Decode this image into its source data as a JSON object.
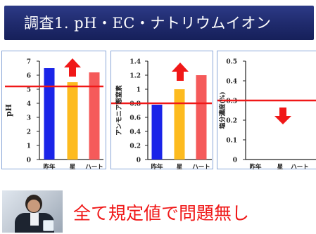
{
  "header": {
    "title": "調査1. pH・EC・ナトリウムイオン"
  },
  "conclusion": {
    "text": "全て規定値で問題無し"
  },
  "colors": {
    "blue": "#1a24e8",
    "yellow": "#fdbb1f",
    "red": "#f55a5a",
    "line": "#f01818",
    "title_bg": "#1f2a6c"
  },
  "icons": {
    "arrow": "red-arrow-icon",
    "photo": "researcher-photo"
  },
  "chart_data": [
    {
      "type": "bar",
      "categories": [
        "昨年",
        "星",
        "ハート"
      ],
      "values": [
        6.5,
        5.5,
        6.2
      ],
      "ylabel": "pH",
      "ylim": [
        0,
        7
      ],
      "yticks": [
        0,
        1,
        2,
        3,
        4,
        5,
        6,
        7
      ],
      "ytick_labels": [
        "0",
        "1",
        "2",
        "3",
        "4",
        "5",
        "6",
        "7"
      ],
      "reference_line": 5.2,
      "arrow": "up",
      "bar_colors": [
        "#1a24e8",
        "#fdbb1f",
        "#f55a5a"
      ]
    },
    {
      "type": "bar",
      "categories": [
        "昨年",
        "星",
        "ハート"
      ],
      "values": [
        0.78,
        1.0,
        1.2
      ],
      "ylabel": "アンモニア態窒素",
      "ylim": [
        0,
        1.4
      ],
      "yticks": [
        0,
        0.2,
        0.4,
        0.6,
        0.8,
        1.0,
        1.2,
        1.4
      ],
      "ytick_labels": [
        "0",
        "0.2",
        "0.4",
        "0.6",
        "0.8",
        "1",
        "1.2",
        "1.4"
      ],
      "reference_line": 0.8,
      "arrow": "up",
      "bar_colors": [
        "#1a24e8",
        "#fdbb1f",
        "#f55a5a"
      ]
    },
    {
      "type": "bar",
      "categories": [
        "昨年",
        "星",
        "ハート"
      ],
      "values": [
        0,
        0,
        0
      ],
      "ylabel": "塩分濃度(%)",
      "ylim": [
        0,
        0.5
      ],
      "yticks": [
        0,
        0.1,
        0.2,
        0.3,
        0.4,
        0.5
      ],
      "ytick_labels": [
        "0",
        "0.1",
        "0.2",
        "0.3",
        "0.4",
        "0.5"
      ],
      "reference_line": 0.3,
      "arrow": "down",
      "bar_colors": [
        "#1a24e8",
        "#fdbb1f",
        "#f55a5a"
      ]
    }
  ]
}
